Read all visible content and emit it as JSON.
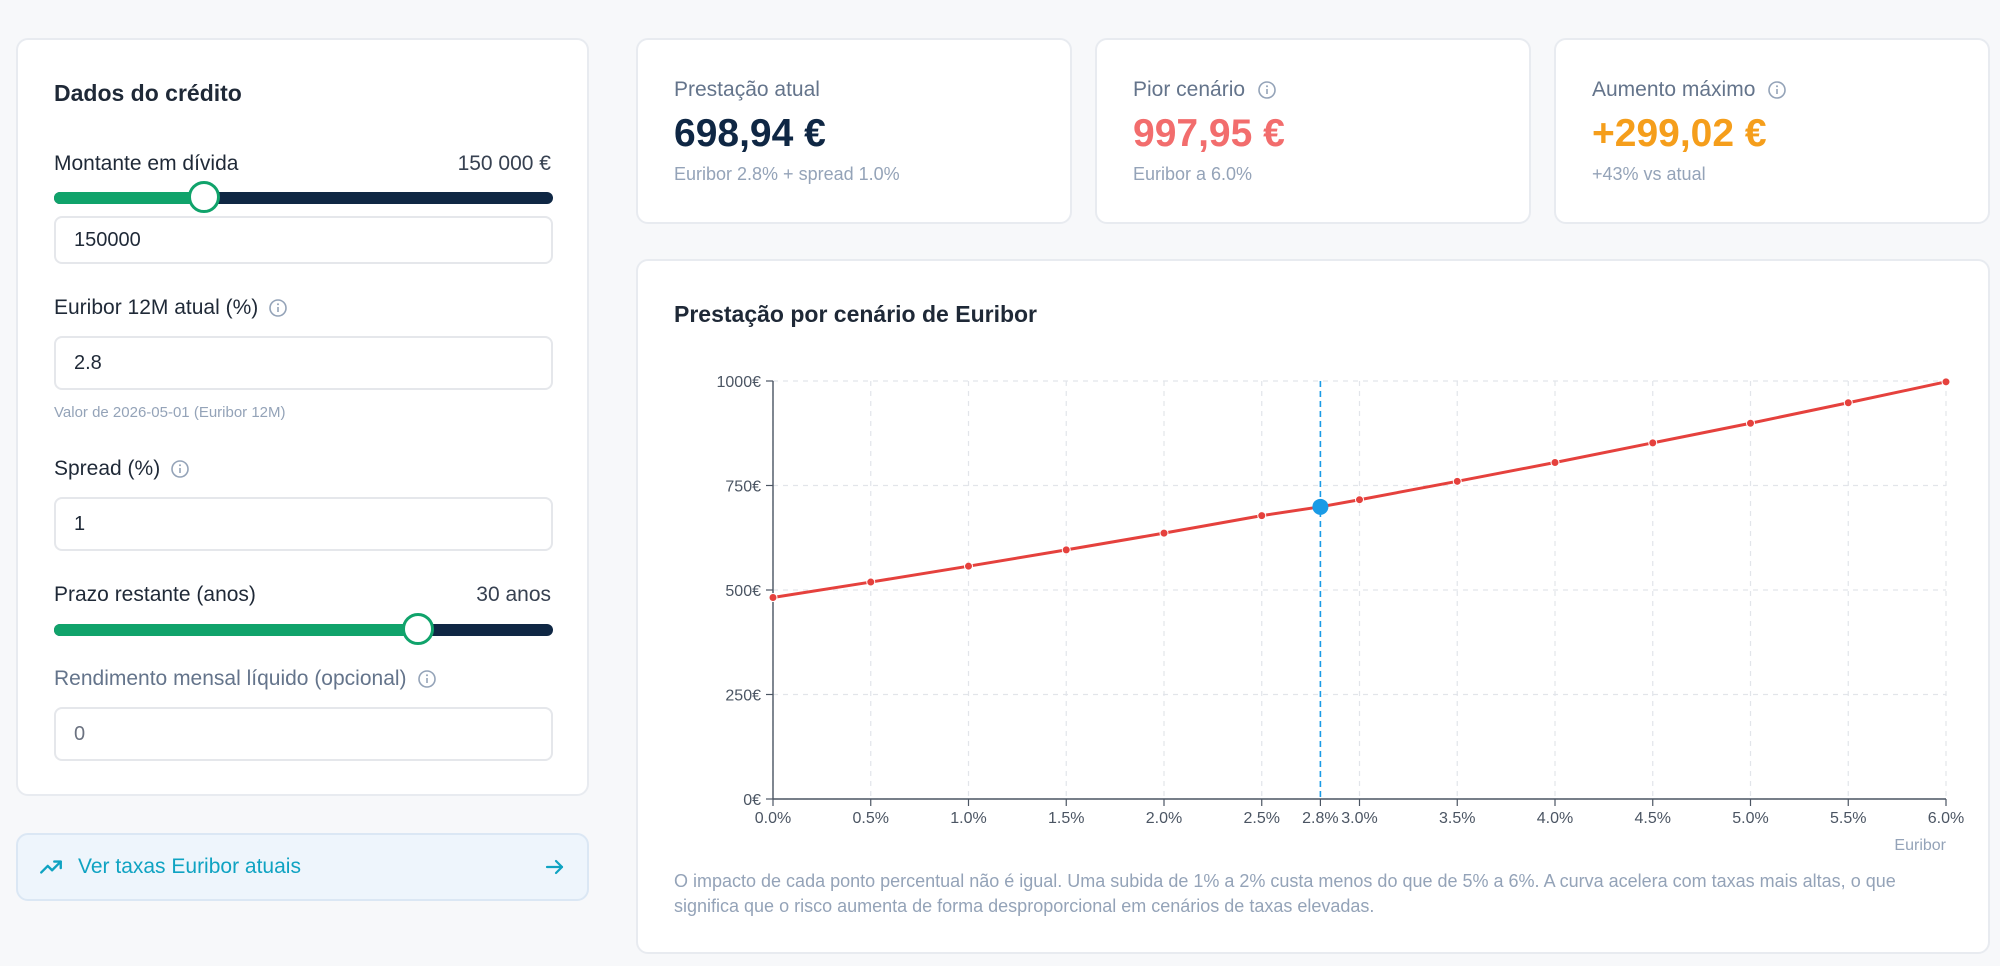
{
  "form": {
    "title": "Dados do crédito",
    "amount": {
      "label": "Montante em dívida",
      "display": "150 000 €",
      "input_value": "150000",
      "slider_fraction": 0.3
    },
    "euribor": {
      "label": "Euribor 12M atual (%)",
      "input_value": "2.8",
      "hint": "Valor de 2026-05-01 (Euribor 12M)"
    },
    "spread": {
      "label": "Spread (%)",
      "input_value": "1"
    },
    "term": {
      "label": "Prazo restante (anos)",
      "display": "30 anos",
      "slider_fraction": 0.73
    },
    "income": {
      "label": "Rendimento mensal líquido (opcional)",
      "placeholder": "0"
    }
  },
  "link": {
    "label": "Ver taxas Euribor atuais",
    "icon": "trending-up-icon",
    "arrow_icon": "arrow-right-icon"
  },
  "stats": {
    "atual": {
      "label": "Prestação atual",
      "value": "698,94 €",
      "sub": "Euribor 2.8% + spread 1.0%",
      "color": "#0f2744"
    },
    "pior": {
      "label": "Pior cenário",
      "value": "997,95 €",
      "sub": "Euribor a 6.0%",
      "color": "#f26d6d"
    },
    "aumento": {
      "label": "Aumento máximo",
      "value": "+299,02 €",
      "sub": "+43% vs atual",
      "color": "#f59e1b"
    }
  },
  "colors": {
    "slider_fill": "#10a36b",
    "slider_track": "#0f2744",
    "line": "#e5413d",
    "current_marker": "#1a9be6",
    "link": "#0fa3c2"
  },
  "chart": {
    "title": "Prestação por cenário de Euribor",
    "xlabel": "Euribor",
    "note": "O impacto de cada ponto percentual não é igual. Uma subida de 1% a 2% custa menos do que de 5% a 6%. A curva acelera com taxas mais altas, o que significa que o risco aumenta de forma desproporcional em cenários de taxas elevadas."
  },
  "chart_data": {
    "type": "line",
    "title": "Prestação por cenário de Euribor",
    "xlabel": "Euribor",
    "ylabel": "",
    "x_tick_labels": [
      "0.0%",
      "0.5%",
      "1.0%",
      "1.5%",
      "2.0%",
      "2.5%",
      "2.8%",
      "3.0%",
      "3.5%",
      "4.0%",
      "4.5%",
      "5.0%",
      "5.5%",
      "6.0%"
    ],
    "y_tick_labels": [
      "0€",
      "250€",
      "500€",
      "750€",
      "1000€"
    ],
    "y_ticks": [
      0,
      250,
      500,
      750,
      1000
    ],
    "ylim": [
      0,
      1000
    ],
    "grid": true,
    "x": [
      0.0,
      0.5,
      1.0,
      1.5,
      2.0,
      2.5,
      2.8,
      3.0,
      3.5,
      4.0,
      4.5,
      5.0,
      5.5,
      6.0
    ],
    "values": [
      482,
      519,
      557,
      596,
      636,
      678,
      699,
      716,
      760,
      805,
      852,
      899,
      948,
      998
    ],
    "highlight_x": 2.8
  }
}
